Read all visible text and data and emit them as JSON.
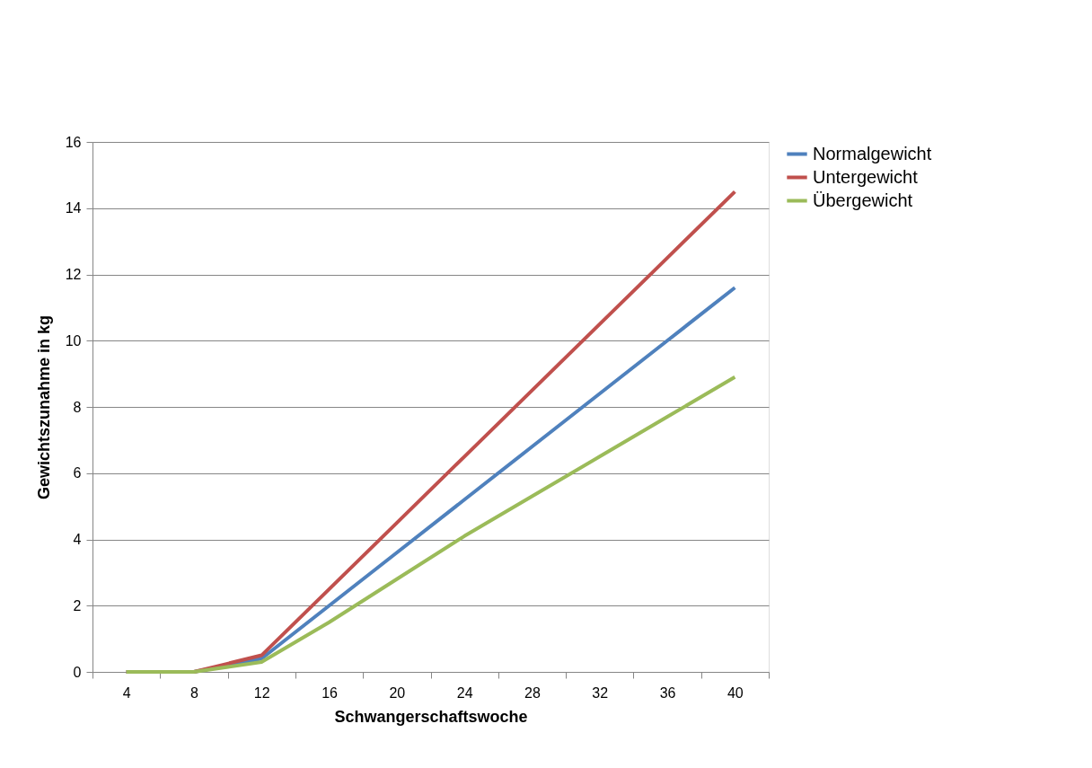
{
  "chart_data": {
    "type": "line",
    "xlabel": "Schwangerschaftswoche",
    "ylabel": "Gewichtszunahme in kg",
    "categories": [
      "4",
      "8",
      "12",
      "16",
      "20",
      "24",
      "28",
      "32",
      "36",
      "40"
    ],
    "series": [
      {
        "name": "Normalgewicht",
        "color": "#4f81bd",
        "values": [
          0,
          0,
          0.4,
          2.0,
          3.6,
          5.2,
          6.8,
          8.4,
          10.0,
          11.6
        ]
      },
      {
        "name": "Untergewicht",
        "color": "#c0504d",
        "values": [
          0,
          0,
          0.5,
          2.5,
          4.5,
          6.5,
          8.5,
          10.5,
          12.5,
          14.5
        ]
      },
      {
        "name": "Übergewicht",
        "color": "#9bbb59",
        "values": [
          0,
          0,
          0.3,
          1.5,
          2.8,
          4.1,
          5.3,
          6.5,
          7.7,
          8.9
        ]
      }
    ],
    "ylim": [
      0,
      16
    ],
    "yticks": [
      0,
      2,
      4,
      6,
      8,
      10,
      12,
      14,
      16
    ],
    "grid": "y",
    "legend": "right"
  }
}
